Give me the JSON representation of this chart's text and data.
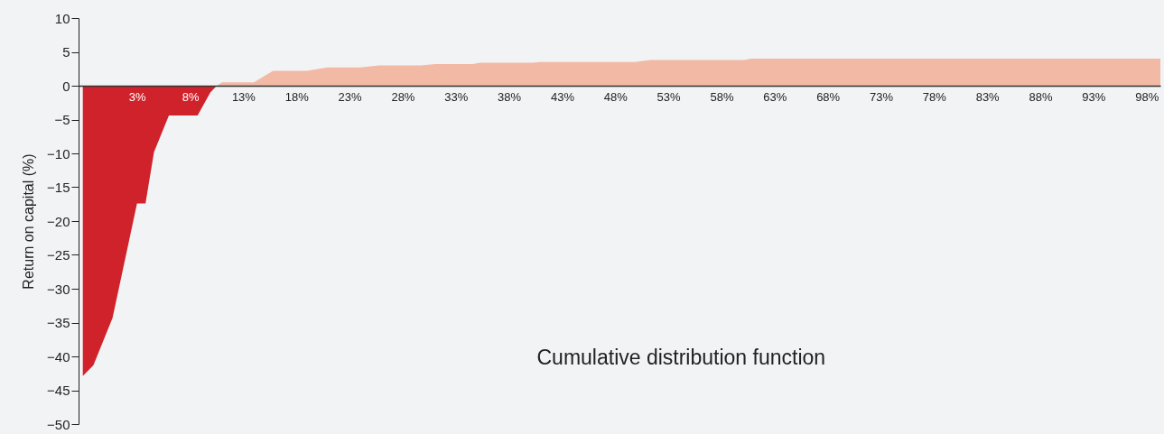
{
  "chart_data": {
    "type": "area",
    "ylabel": "Return on capital (%)",
    "annotations": [
      "Cumulative distribution function"
    ],
    "xlim": [
      -2.5,
      99.3
    ],
    "ylim": [
      -50,
      10
    ],
    "xticks": [
      {
        "value": 3,
        "label": "3%"
      },
      {
        "value": 8,
        "label": "8%"
      },
      {
        "value": 13,
        "label": "13%"
      },
      {
        "value": 18,
        "label": "18%"
      },
      {
        "value": 23,
        "label": "23%"
      },
      {
        "value": 28,
        "label": "28%"
      },
      {
        "value": 33,
        "label": "33%"
      },
      {
        "value": 38,
        "label": "38%"
      },
      {
        "value": 43,
        "label": "43%"
      },
      {
        "value": 48,
        "label": "48%"
      },
      {
        "value": 53,
        "label": "53%"
      },
      {
        "value": 58,
        "label": "58%"
      },
      {
        "value": 63,
        "label": "63%"
      },
      {
        "value": 68,
        "label": "68%"
      },
      {
        "value": 73,
        "label": "73%"
      },
      {
        "value": 78,
        "label": "78%"
      },
      {
        "value": 83,
        "label": "83%"
      },
      {
        "value": 88,
        "label": "88%"
      },
      {
        "value": 93,
        "label": "93%"
      },
      {
        "value": 98,
        "label": "98%"
      }
    ],
    "yticks": [
      10,
      5,
      0,
      -5,
      -10,
      -15,
      -20,
      -25,
      -30,
      -35,
      -40,
      -45,
      -50
    ],
    "grid": false,
    "series": [
      {
        "type": "area",
        "color": "#d0222a",
        "x": [
          -2.1,
          -1.1,
          0.7,
          3.0,
          3.8,
          4.6,
          6.0,
          8.7,
          9.9,
          10.5
        ],
        "values": [
          -42.9,
          -41.3,
          -34.3,
          -17.4,
          -17.4,
          -9.8,
          -4.4,
          -4.4,
          -1.0,
          0
        ]
      },
      {
        "type": "area",
        "color": "#f2b9a5",
        "x": [
          10.5,
          11.0,
          14.0,
          15.8,
          19.0,
          20.9,
          24.0,
          25.8,
          29.7,
          31.1,
          34.6,
          35.3,
          40.3,
          40.9,
          49.8,
          51.3,
          60.1,
          60.8,
          99.3
        ],
        "values": [
          0,
          0.5,
          0.5,
          2.2,
          2.2,
          2.7,
          2.7,
          3.0,
          3.0,
          3.2,
          3.2,
          3.4,
          3.4,
          3.5,
          3.5,
          3.8,
          3.8,
          4.0,
          4.0
        ]
      }
    ]
  }
}
